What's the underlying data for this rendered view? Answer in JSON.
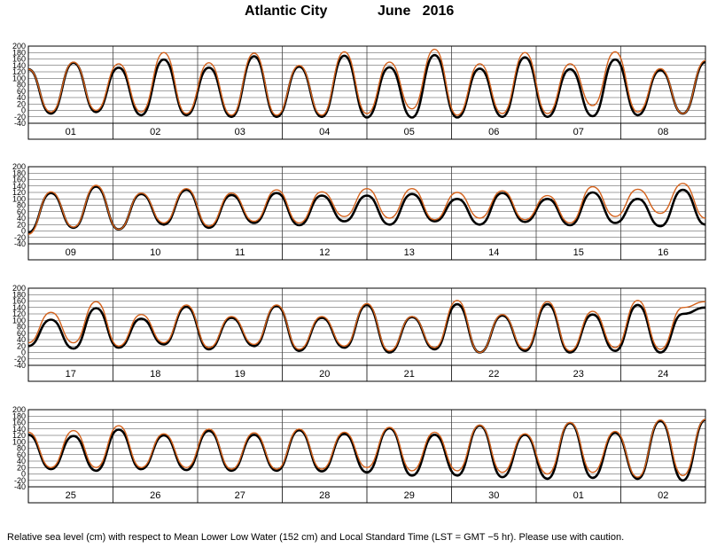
{
  "chart_data": {
    "type": "line",
    "title_left": "Atlantic City",
    "title_right": "June   2016",
    "footnote": "Relative sea level (cm) with respect to Mean Lower Low Water (152 cm) and Local Standard Time (LST = GMT −5 hr). Please use with caution.",
    "ylim": [
      -40,
      200
    ],
    "yticks": [
      -40,
      -20,
      0,
      20,
      40,
      60,
      80,
      100,
      120,
      140,
      160,
      180,
      200
    ],
    "grid": true,
    "colors": {
      "observed": "#d4621c",
      "predicted": "#000000"
    },
    "panels": [
      {
        "days": [
          "01",
          "02",
          "03",
          "04",
          "05",
          "06",
          "07",
          "08"
        ],
        "predicted_peaks": [
          128,
          -10,
          148,
          -5,
          133,
          -15,
          158,
          -15,
          133,
          -20,
          168,
          -20,
          136,
          -20,
          170,
          -22,
          134,
          -22,
          172,
          -22,
          130,
          -20,
          165,
          -20,
          128,
          -18,
          158,
          -15,
          125,
          -10,
          150
        ],
        "observed_peaks": [
          128,
          -5,
          150,
          0,
          145,
          -5,
          180,
          -10,
          148,
          -15,
          178,
          -15,
          140,
          -15,
          182,
          -10,
          150,
          5,
          190,
          -15,
          145,
          -10,
          180,
          -10,
          145,
          15,
          182,
          -5,
          130,
          -10,
          155
        ]
      },
      {
        "days": [
          "09",
          "10",
          "11",
          "12",
          "13",
          "14",
          "15",
          "16"
        ],
        "predicted_peaks": [
          -5,
          118,
          10,
          138,
          5,
          115,
          20,
          128,
          10,
          112,
          25,
          118,
          18,
          110,
          30,
          110,
          20,
          115,
          30,
          100,
          20,
          118,
          28,
          100,
          18,
          120,
          25,
          100,
          15,
          128,
          20
        ],
        "observed_peaks": [
          -10,
          122,
          12,
          142,
          5,
          118,
          25,
          132,
          15,
          118,
          30,
          128,
          25,
          122,
          45,
          132,
          40,
          132,
          35,
          120,
          40,
          125,
          35,
          110,
          25,
          138,
          45,
          130,
          55,
          148,
          40
        ]
      },
      {
        "days": [
          "17",
          "18",
          "19",
          "20",
          "21",
          "22",
          "23",
          "24"
        ],
        "predicted_peaks": [
          20,
          102,
          12,
          138,
          15,
          105,
          25,
          142,
          10,
          108,
          20,
          145,
          5,
          108,
          15,
          148,
          0,
          110,
          10,
          150,
          0,
          115,
          5,
          150,
          0,
          118,
          5,
          148,
          0,
          120,
          140
        ],
        "observed_peaks": [
          30,
          125,
          30,
          158,
          20,
          118,
          30,
          148,
          15,
          112,
          25,
          148,
          10,
          112,
          20,
          152,
          5,
          112,
          15,
          162,
          0,
          118,
          10,
          158,
          5,
          128,
          15,
          162,
          10,
          140,
          158
        ]
      },
      {
        "days": [
          "25",
          "26",
          "27",
          "28",
          "29",
          "30",
          "01",
          "02"
        ],
        "predicted_peaks": [
          122,
          15,
          118,
          10,
          138,
          15,
          120,
          12,
          134,
          10,
          122,
          10,
          136,
          8,
          125,
          5,
          142,
          -5,
          122,
          -5,
          150,
          -10,
          122,
          -15,
          158,
          -12,
          128,
          -15,
          165,
          -20,
          168
        ],
        "observed_peaks": [
          130,
          20,
          135,
          20,
          150,
          20,
          125,
          20,
          140,
          15,
          128,
          15,
          140,
          15,
          130,
          20,
          145,
          10,
          130,
          10,
          152,
          5,
          125,
          0,
          160,
          5,
          132,
          -10,
          168,
          -5,
          170
        ]
      }
    ]
  }
}
